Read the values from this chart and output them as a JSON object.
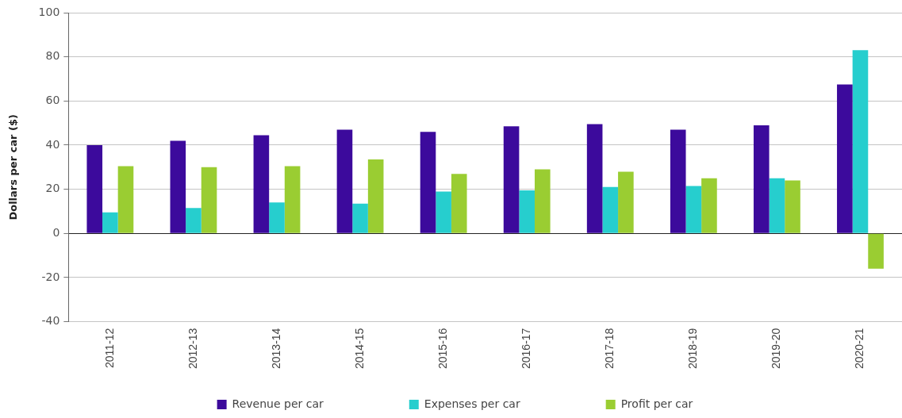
{
  "chart_data": {
    "type": "bar",
    "ylabel": "Dollars per car ($)",
    "categories": [
      "2011-12",
      "2012-13",
      "2013-14",
      "2014-15",
      "2015-16",
      "2016-17",
      "2017-18",
      "2018-19",
      "2019-20",
      "2020-21"
    ],
    "series": [
      {
        "name": "Revenue per car",
        "color": "#3c0a9c",
        "values": [
          40,
          42,
          44.5,
          47,
          46,
          48.5,
          49.5,
          47,
          49,
          67.5
        ]
      },
      {
        "name": "Expenses per car",
        "color": "#26cece",
        "values": [
          9.5,
          11.5,
          14,
          13.5,
          19,
          19.5,
          21,
          21.5,
          25,
          83
        ]
      },
      {
        "name": "Profit per car",
        "color": "#9acd32",
        "values": [
          30.5,
          30,
          30.5,
          33.5,
          27,
          29,
          28,
          25,
          24,
          -16
        ]
      }
    ],
    "ylim": [
      -40,
      100
    ],
    "yticks": [
      -40,
      -20,
      0,
      20,
      40,
      60,
      80,
      100
    ],
    "grid": "y",
    "legend": "bottom"
  }
}
